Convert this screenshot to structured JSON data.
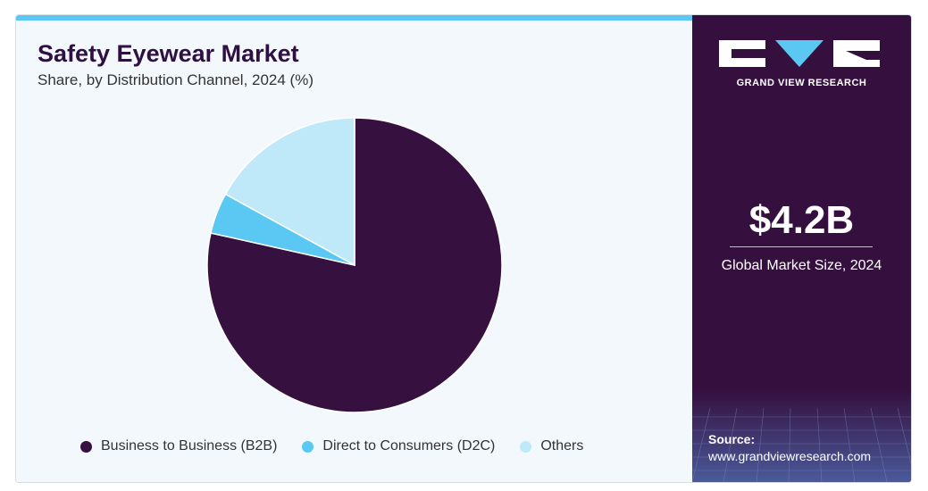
{
  "header": {
    "title": "Safety Eyewear Market",
    "subtitle": "Share, by Distribution Channel, 2024 (%)"
  },
  "chart_data": {
    "type": "pie",
    "title": "Safety Eyewear Market",
    "subtitle": "Share, by Distribution Channel, 2024 (%)",
    "categories": [
      "Business to Business (B2B)",
      "Direct to Consumers (D2C)",
      "Others"
    ],
    "values": [
      78.5,
      4.5,
      17.0
    ],
    "colors": [
      "#36103f",
      "#5bc8f3",
      "#bfe8f8"
    ],
    "legend_position": "bottom"
  },
  "sidebar": {
    "brand": "GRAND VIEW RESEARCH",
    "market_size": "$4.2B",
    "market_size_label": "Global Market Size, 2024",
    "source_label": "Source:",
    "source_url": "www.grandviewresearch.com"
  }
}
